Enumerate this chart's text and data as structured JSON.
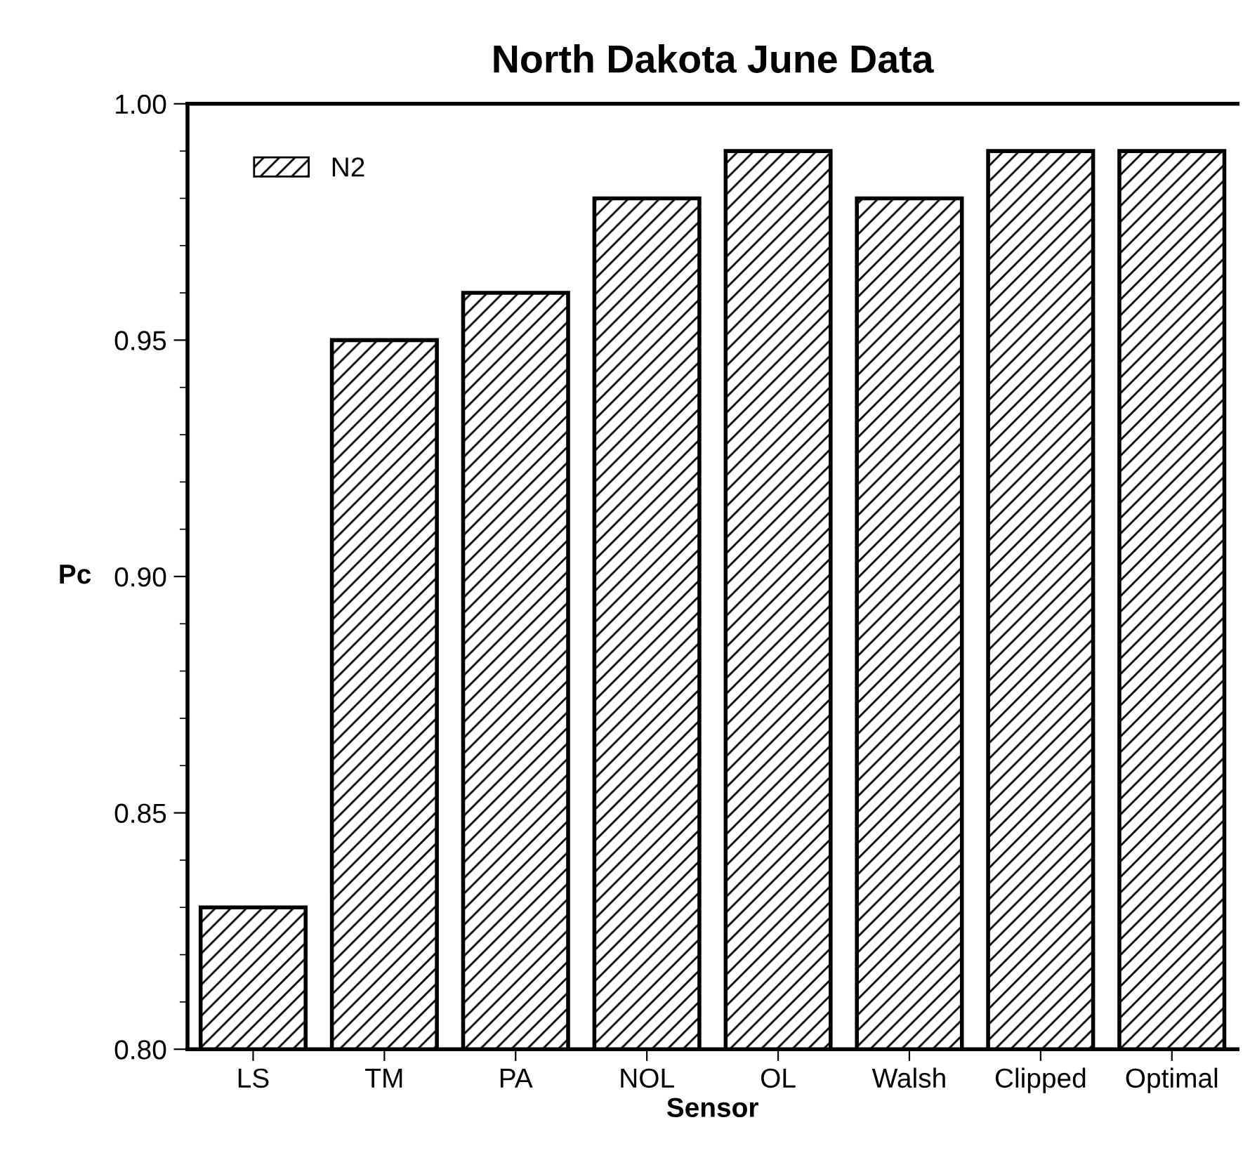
{
  "chart_data": {
    "type": "bar",
    "title": "North Dakota June Data",
    "xlabel": "Sensor",
    "ylabel": "Pc",
    "categories": [
      "LS",
      "TM",
      "PA",
      "NOL",
      "OL",
      "Walsh",
      "Clipped",
      "Optimal"
    ],
    "series": [
      {
        "name": "N2",
        "color": "#000000",
        "values": [
          0.83,
          0.95,
          0.96,
          0.98,
          0.99,
          0.98,
          0.99,
          0.99
        ]
      }
    ],
    "ylim": [
      0.8,
      1.0
    ],
    "yticks": [
      {
        "value": 0.8,
        "label": "0.80"
      },
      {
        "value": 0.85,
        "label": "0.85"
      },
      {
        "value": 0.9,
        "label": "0.90"
      },
      {
        "value": 0.95,
        "label": "0.95"
      },
      {
        "value": 1.0,
        "label": "1.00"
      }
    ],
    "grid": false,
    "legend": "top left"
  }
}
